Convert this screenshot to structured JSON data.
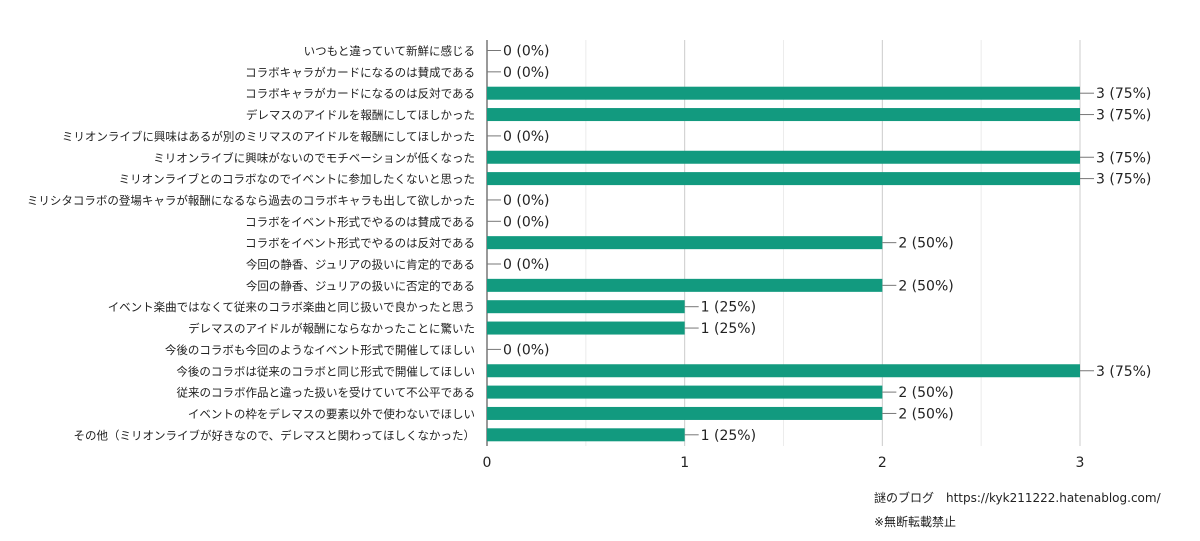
{
  "chart_data": {
    "type": "bar",
    "orientation": "horizontal",
    "categories": [
      "いつもと違っていて新鮮に感じる",
      "コラボキャラがカードになるのは賛成である",
      "コラボキャラがカードになるのは反対である",
      "デレマスのアイドルを報酬にしてほしかった",
      "ミリオンライブに興味はあるが別のミリマスのアイドルを報酬にしてほしかった",
      "ミリオンライブに興味がないのでモチベーションが低くなった",
      "ミリオンライブとのコラボなのでイベントに参加したくないと思った",
      "ミリシタコラボの登場キャラが報酬になるなら過去のコラボキャラも出して欲しかった",
      "コラボをイベント形式でやるのは賛成である",
      "コラボをイベント形式でやるのは反対である",
      "今回の静香、ジュリアの扱いに肯定的である",
      "今回の静香、ジュリアの扱いに否定的である",
      "イベント楽曲ではなくて従来のコラボ楽曲と同じ扱いで良かったと思う",
      "デレマスのアイドルが報酬にならなかったことに驚いた",
      "今後のコラボも今回のようなイベント形式で開催してほしい",
      "今後のコラボは従来のコラボと同じ形式で開催してほしい",
      "従来のコラボ作品と違った扱いを受けていて不公平である",
      "イベントの枠をデレマスの要素以外で使わないでほしい",
      "その他（ミリオンライブが好きなので、デレマスと関わってほしくなかった）"
    ],
    "values": [
      0,
      0,
      3,
      3,
      0,
      3,
      3,
      0,
      0,
      2,
      0,
      2,
      1,
      1,
      0,
      3,
      2,
      2,
      1
    ],
    "data_labels": [
      "0 (0%)",
      "0 (0%)",
      "3 (75%)",
      "3 (75%)",
      "0 (0%)",
      "3 (75%)",
      "3 (75%)",
      "0 (0%)",
      "0 (0%)",
      "2 (50%)",
      "0 (0%)",
      "2 (50%)",
      "1 (25%)",
      "1 (25%)",
      "0 (0%)",
      "3 (75%)",
      "2 (50%)",
      "2 (50%)",
      "1 (25%)"
    ],
    "xlim": [
      0,
      3
    ],
    "x_ticks": [
      "0",
      "1",
      "2",
      "3"
    ],
    "grid": true,
    "bar_color": "#129a7f",
    "title": "",
    "xlabel": "",
    "ylabel": ""
  },
  "footer": {
    "blog": "謎のブログ　https://kyk211222.hatenablog.com/",
    "note": "※無断転載禁止"
  }
}
